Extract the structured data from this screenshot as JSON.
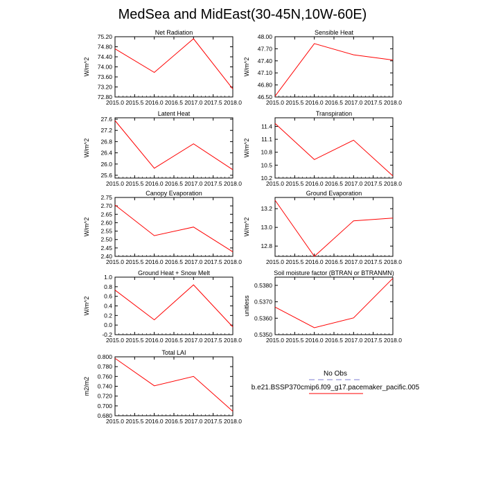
{
  "title": "MedSea and MidEast(30-45N,10W-60E)",
  "colors": {
    "series": "#ff0000",
    "obs": "#a9a9e0",
    "axis": "#000000"
  },
  "legend": {
    "obs_label": "No Obs",
    "series_label": "b.e21.BSSP370cmip6.f09_g17.pacemaker_pacific.005"
  },
  "chart_data": [
    {
      "type": "line",
      "title": "Net Radiation",
      "ylabel": "W/m^2",
      "x": [
        2015,
        2016,
        2017,
        2018
      ],
      "values": [
        74.72,
        73.78,
        75.12,
        73.12
      ],
      "xlim": [
        2015,
        2018
      ],
      "ylim": [
        72.8,
        75.2
      ],
      "xticks": [
        "2015.0",
        "2015.5",
        "2016.0",
        "2016.5",
        "2017.0",
        "2017.5",
        "2018.0"
      ],
      "yticks": [
        "72.80",
        "73.20",
        "73.60",
        "74.00",
        "74.40",
        "74.80",
        "75.20"
      ]
    },
    {
      "type": "line",
      "title": "Sensible Heat",
      "ylabel": "W/m^2",
      "x": [
        2015,
        2016,
        2017,
        2018
      ],
      "values": [
        46.52,
        47.83,
        47.55,
        47.42
      ],
      "xlim": [
        2015,
        2018
      ],
      "ylim": [
        46.5,
        48.0
      ],
      "xticks": [
        "2015.0",
        "2015.5",
        "2016.0",
        "2016.5",
        "2017.0",
        "2017.5",
        "2018.0"
      ],
      "yticks": [
        "46.50",
        "46.80",
        "47.10",
        "47.40",
        "47.70",
        "48.00"
      ]
    },
    {
      "type": "line",
      "title": "Latent Heat",
      "ylabel": "W/m^2",
      "x": [
        2015,
        2016,
        2017,
        2018
      ],
      "values": [
        27.55,
        25.85,
        26.72,
        25.8
      ],
      "xlim": [
        2015,
        2018
      ],
      "ylim": [
        25.5,
        27.65
      ],
      "xticks": [
        "2015.0",
        "2015.5",
        "2016.0",
        "2016.5",
        "2017.0",
        "2017.5",
        "2018.0"
      ],
      "yticks": [
        "25.6",
        "26.0",
        "26.4",
        "26.8",
        "27.2",
        "27.6"
      ]
    },
    {
      "type": "line",
      "title": "Transpiration",
      "ylabel": "W/m^2",
      "x": [
        2015,
        2016,
        2017,
        2018
      ],
      "values": [
        11.47,
        10.63,
        11.08,
        10.25
      ],
      "xlim": [
        2015,
        2018
      ],
      "ylim": [
        10.2,
        11.6
      ],
      "xticks": [
        "2015.0",
        "2015.5",
        "2016.0",
        "2016.5",
        "2017.0",
        "2017.5",
        "2018.0"
      ],
      "yticks": [
        "10.2",
        "10.5",
        "10.8",
        "11.1",
        "11.4"
      ]
    },
    {
      "type": "line",
      "title": "Canopy Evaporation",
      "ylabel": "W/m^2",
      "x": [
        2015,
        2016,
        2017,
        2018
      ],
      "values": [
        2.705,
        2.523,
        2.574,
        2.427
      ],
      "xlim": [
        2015,
        2018
      ],
      "ylim": [
        2.4,
        2.75
      ],
      "xticks": [
        "2015.0",
        "2015.5",
        "2016.0",
        "2016.5",
        "2017.0",
        "2017.5",
        "2018.0"
      ],
      "yticks": [
        "2.40",
        "2.45",
        "2.50",
        "2.55",
        "2.60",
        "2.65",
        "2.70",
        "2.75"
      ]
    },
    {
      "type": "line",
      "title": "Ground Evaporation",
      "ylabel": "W/m^2",
      "x": [
        2015,
        2016,
        2017,
        2018
      ],
      "values": [
        13.29,
        12.69,
        13.07,
        13.1
      ],
      "xlim": [
        2015,
        2018
      ],
      "ylim": [
        12.69,
        13.32
      ],
      "xticks": [
        "2015.0",
        "2015.5",
        "2016.0",
        "2016.5",
        "2017.0",
        "2017.5",
        "2018.0"
      ],
      "yticks": [
        "12.8",
        "13.0",
        "13.2"
      ]
    },
    {
      "type": "line",
      "title": "Ground Heat + Snow Melt",
      "ylabel": "W/m^2",
      "x": [
        2015,
        2016,
        2017,
        2018
      ],
      "values": [
        0.73,
        0.11,
        0.84,
        -0.04
      ],
      "xlim": [
        2015,
        2018
      ],
      "ylim": [
        -0.2,
        1.0
      ],
      "xticks": [
        "2015.0",
        "2015.5",
        "2016.0",
        "2016.5",
        "2017.0",
        "2017.5",
        "2018.0"
      ],
      "yticks": [
        "-0.2",
        "0.0",
        "0.2",
        "0.4",
        "0.6",
        "0.8",
        "1.0"
      ]
    },
    {
      "type": "line",
      "title": "Soil moisture factor (BTRAN or BTRANMN)",
      "ylabel": "unitless",
      "x": [
        2015,
        2016,
        2017,
        2018
      ],
      "values": [
        0.53668,
        0.53542,
        0.53602,
        0.53843
      ],
      "xlim": [
        2015,
        2018
      ],
      "ylim": [
        0.535,
        0.5385
      ],
      "xticks": [
        "2015.0",
        "2015.5",
        "2016.0",
        "2016.5",
        "2017.0",
        "2017.5",
        "2018.0"
      ],
      "yticks": [
        "0.5350",
        "0.5360",
        "0.5370",
        "0.5380"
      ]
    },
    {
      "type": "line",
      "title": "Total LAI",
      "ylabel": "m2/m2",
      "x": [
        2015,
        2016,
        2017,
        2018
      ],
      "values": [
        0.797,
        0.741,
        0.76,
        0.689
      ],
      "xlim": [
        2015,
        2018
      ],
      "ylim": [
        0.68,
        0.8
      ],
      "xticks": [
        "2015.0",
        "2015.5",
        "2016.0",
        "2016.5",
        "2017.0",
        "2017.5",
        "2018.0"
      ],
      "yticks": [
        "0.680",
        "0.700",
        "0.720",
        "0.740",
        "0.760",
        "0.780",
        "0.800"
      ]
    }
  ]
}
